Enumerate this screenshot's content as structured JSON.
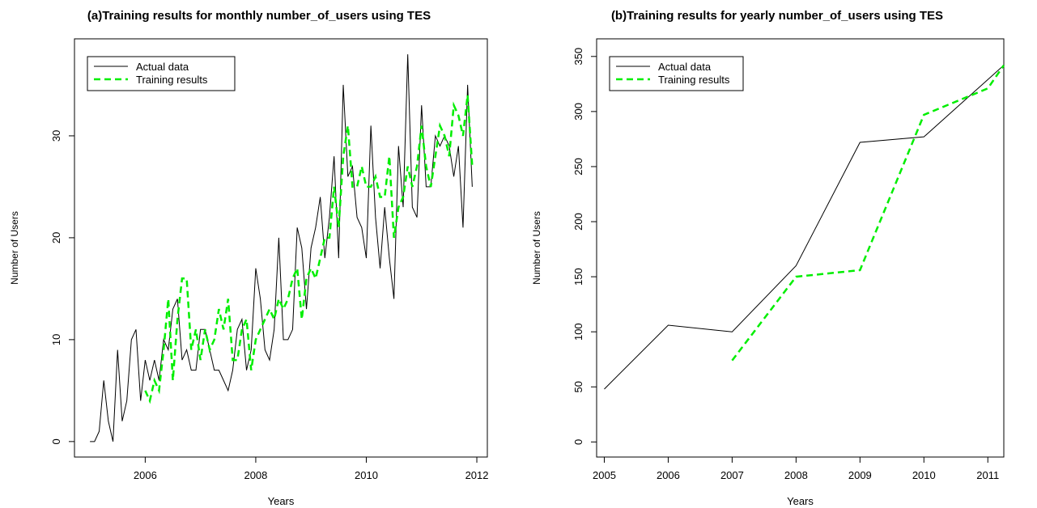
{
  "chart_data": [
    {
      "type": "line",
      "title": "(a)Training results for monthly number_of_users using TES",
      "xlabel": "Years",
      "ylabel": "Number of Users",
      "x": [
        2005,
        2005.083,
        2005.167,
        2005.25,
        2005.333,
        2005.417,
        2005.5,
        2005.583,
        2005.667,
        2005.75,
        2005.833,
        2005.917,
        2006,
        2006.083,
        2006.167,
        2006.25,
        2006.333,
        2006.417,
        2006.5,
        2006.583,
        2006.667,
        2006.75,
        2006.833,
        2006.917,
        2007,
        2007.083,
        2007.167,
        2007.25,
        2007.333,
        2007.417,
        2007.5,
        2007.583,
        2007.667,
        2007.75,
        2007.833,
        2007.917,
        2008,
        2008.083,
        2008.167,
        2008.25,
        2008.333,
        2008.417,
        2008.5,
        2008.583,
        2008.667,
        2008.75,
        2008.833,
        2008.917,
        2009,
        2009.083,
        2009.167,
        2009.25,
        2009.333,
        2009.417,
        2009.5,
        2009.583,
        2009.667,
        2009.75,
        2009.833,
        2009.917,
        2010,
        2010.083,
        2010.167,
        2010.25,
        2010.333,
        2010.417,
        2010.5,
        2010.583,
        2010.667,
        2010.75,
        2010.833,
        2010.917,
        2011,
        2011.083,
        2011.167,
        2011.25,
        2011.333,
        2011.417,
        2011.5,
        2011.583,
        2011.667,
        2011.75,
        2011.833,
        2011.917
      ],
      "series": [
        {
          "name": "Actual data",
          "color": "#000000",
          "linestyle": "solid",
          "values": [
            0,
            0,
            1,
            6,
            2,
            0,
            9,
            2,
            4,
            10,
            11,
            4,
            8,
            6,
            8,
            6,
            10,
            9,
            13,
            14,
            8,
            9,
            7,
            7,
            11,
            11,
            9,
            7,
            7,
            6,
            5,
            7,
            11,
            12,
            7,
            9,
            17,
            14,
            9,
            8,
            11,
            20,
            10,
            10,
            11,
            21,
            19,
            13,
            19,
            21,
            24,
            18,
            22,
            28,
            18,
            35,
            26,
            27,
            22,
            21,
            18,
            31,
            22,
            17,
            23,
            18,
            14,
            29,
            23,
            38,
            23,
            22,
            33,
            25,
            25,
            30,
            29,
            30,
            29,
            26,
            29,
            21,
            35,
            25
          ]
        },
        {
          "name": "Training results",
          "color": "#00ee00",
          "linestyle": "dashed",
          "values": [
            null,
            null,
            null,
            null,
            null,
            null,
            null,
            null,
            null,
            null,
            null,
            null,
            5,
            4,
            6,
            5,
            9,
            14,
            6,
            12,
            16,
            16,
            9,
            11,
            8,
            11,
            9,
            10,
            13,
            11,
            14,
            8,
            8,
            11,
            12,
            7,
            10,
            11,
            12,
            13,
            12,
            14,
            13,
            14,
            16,
            17,
            12,
            16,
            17,
            16,
            18,
            20,
            20,
            25,
            21,
            28,
            31,
            25,
            25,
            27,
            25,
            25,
            26,
            24,
            24,
            28,
            20,
            23,
            24,
            27,
            25,
            27,
            31,
            27,
            25,
            28,
            31,
            30,
            28,
            33,
            32,
            30,
            34,
            27
          ]
        }
      ],
      "xlim": [
        2004.72,
        2012.19
      ],
      "ylim": [
        -1.52,
        39.52
      ],
      "xticks": [
        2006,
        2008,
        2010,
        2012
      ],
      "yticks": [
        0,
        10,
        20,
        30
      ],
      "legend": "top-left"
    },
    {
      "type": "line",
      "title": "(b)Training results for yearly number_of_users using TES",
      "xlabel": "Years",
      "ylabel": "Number of Users",
      "x": [
        2005,
        2006,
        2007,
        2008,
        2009,
        2010,
        2011,
        2011.25
      ],
      "series": [
        {
          "name": "Actual data",
          "color": "#000000",
          "linestyle": "solid",
          "values": [
            48,
            106,
            100,
            160,
            272,
            277,
            329,
            342
          ]
        },
        {
          "name": "Training results",
          "color": "#00ee00",
          "linestyle": "dashed",
          "values": [
            null,
            null,
            74,
            150,
            156,
            297,
            321,
            342
          ]
        }
      ],
      "xlim": [
        2004.88,
        2011.25
      ],
      "ylim": [
        -13.7,
        366
      ],
      "xticks": [
        2005,
        2006,
        2007,
        2008,
        2009,
        2010,
        2011
      ],
      "yticks": [
        0,
        50,
        100,
        150,
        200,
        250,
        300,
        350
      ],
      "legend": "top-left"
    }
  ]
}
